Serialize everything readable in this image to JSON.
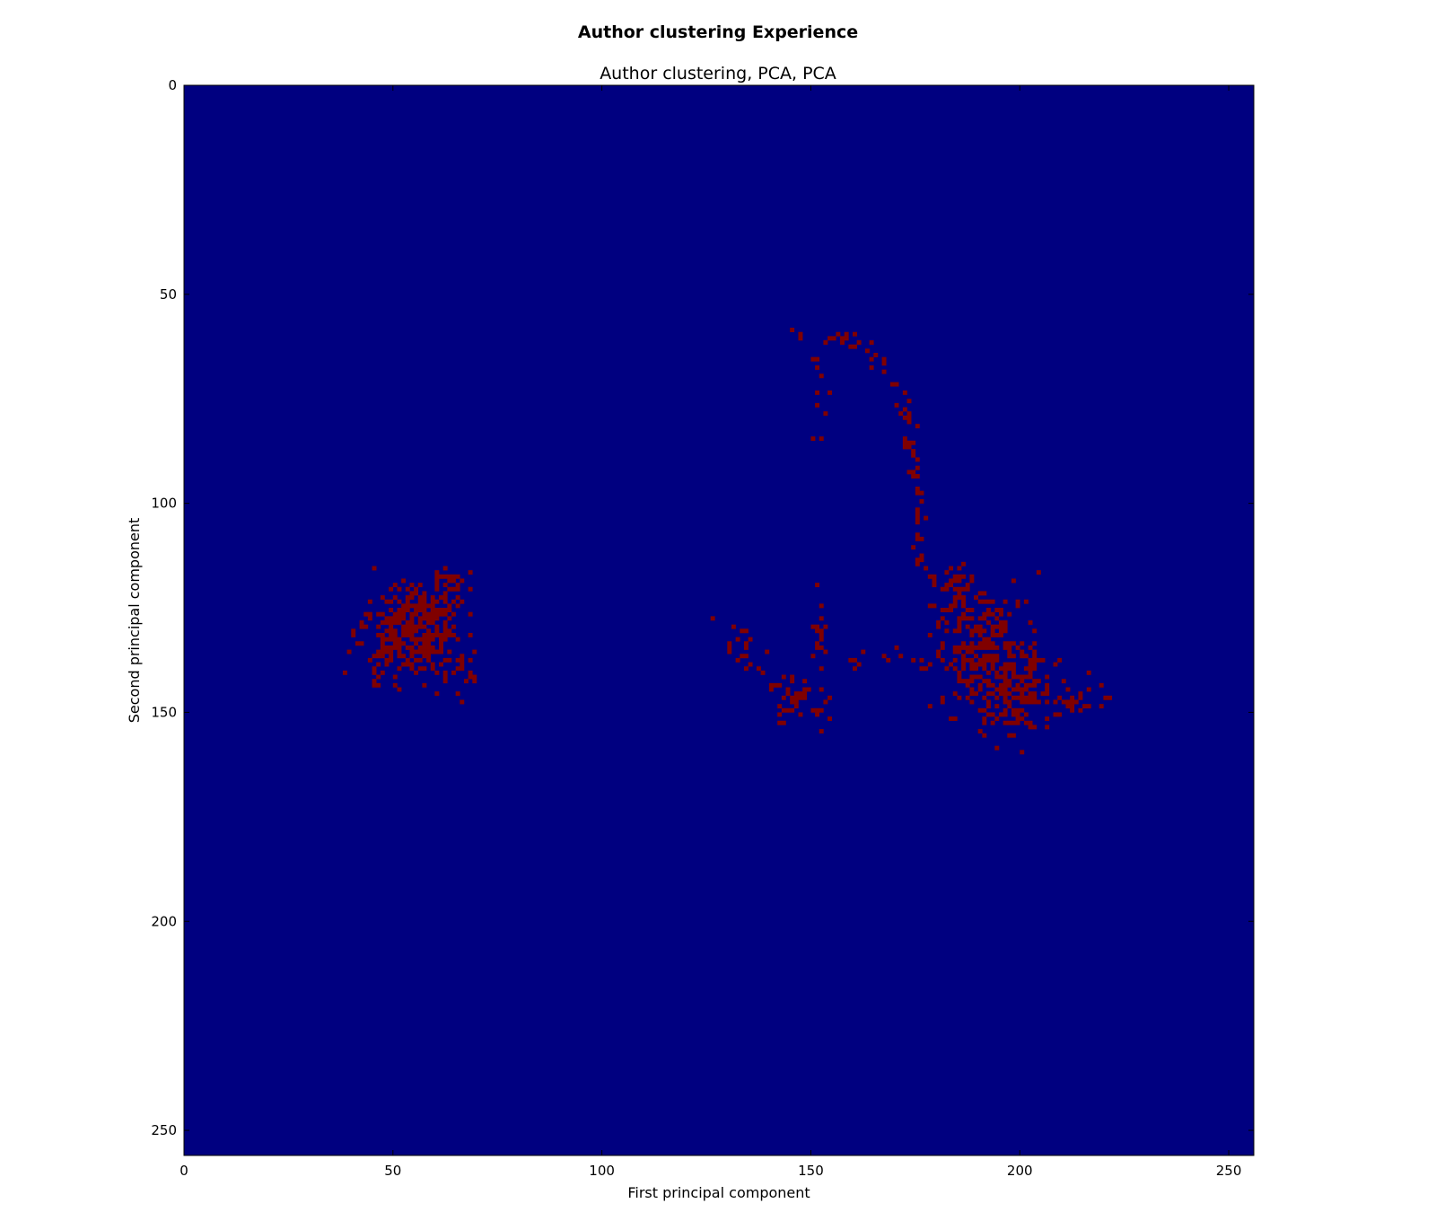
{
  "chart_data": {
    "type": "heatmap",
    "suptitle": "Author clustering Experience",
    "title": "Author clustering, PCA, PCA",
    "xlabel": "First principal component",
    "ylabel": "Second principal component",
    "xlim": [
      0,
      256
    ],
    "ylim": [
      256,
      0
    ],
    "xticks": [
      0,
      50,
      100,
      150,
      200,
      250
    ],
    "yticks": [
      0,
      50,
      100,
      150,
      200,
      250
    ],
    "grid": false,
    "colormap": {
      "background": "#000080",
      "point": "#800000"
    },
    "clusters": [
      {
        "cx": 53,
        "cy": 131,
        "sx": 5.5,
        "sy": 5.5,
        "n": 260,
        "seed": 11
      },
      {
        "cx": 58,
        "cy": 126,
        "sx": 3.5,
        "sy": 4,
        "n": 90,
        "seed": 12
      },
      {
        "cx": 63,
        "cy": 118,
        "sx": 2,
        "sy": 1.2,
        "n": 20,
        "seed": 13
      },
      {
        "cx": 66,
        "cy": 139,
        "sx": 2.5,
        "sy": 2.5,
        "n": 18,
        "seed": 14
      },
      {
        "cx": 190,
        "cy": 133,
        "sx": 5.5,
        "sy": 7,
        "n": 200,
        "seed": 21
      },
      {
        "cx": 197,
        "cy": 145,
        "sx": 6,
        "sy": 5,
        "n": 160,
        "seed": 22
      },
      {
        "cx": 210,
        "cy": 147,
        "sx": 5,
        "sy": 2,
        "n": 30,
        "seed": 23
      },
      {
        "cx": 184,
        "cy": 120,
        "sx": 2.5,
        "sy": 4,
        "n": 40,
        "seed": 24
      },
      {
        "cx": 145,
        "cy": 146,
        "sx": 3,
        "sy": 3,
        "n": 35,
        "seed": 31
      },
      {
        "cx": 152,
        "cy": 130,
        "sx": 1.2,
        "sy": 4,
        "n": 16,
        "seed": 32
      },
      {
        "cx": 132,
        "cy": 134,
        "sx": 3,
        "sy": 3,
        "n": 12,
        "seed": 33
      }
    ],
    "paths": [
      {
        "points": [
          [
            146,
            59
          ],
          [
            150,
            61
          ],
          [
            154,
            60
          ],
          [
            159,
            60
          ],
          [
            164,
            64
          ],
          [
            168,
            69
          ],
          [
            171,
            75
          ],
          [
            173,
            84
          ],
          [
            174,
            95
          ],
          [
            176,
            107
          ],
          [
            177,
            117
          ]
        ],
        "n": 80,
        "jitter": 1.1,
        "seed": 41
      },
      {
        "points": [
          [
            150,
            63
          ],
          [
            152,
            70
          ],
          [
            152,
            79
          ],
          [
            151,
            88
          ]
        ],
        "n": 12,
        "jitter": 0.8,
        "seed": 42
      },
      {
        "points": [
          [
            122,
            125
          ],
          [
            130,
            132
          ],
          [
            140,
            140
          ],
          [
            146,
            147
          ],
          [
            154,
            151
          ]
        ],
        "n": 22,
        "jitter": 1.5,
        "seed": 43
      },
      {
        "points": [
          [
            160,
            138
          ],
          [
            166,
            136
          ],
          [
            172,
            136
          ],
          [
            176,
            139
          ]
        ],
        "n": 14,
        "jitter": 1.2,
        "seed": 44
      }
    ]
  }
}
